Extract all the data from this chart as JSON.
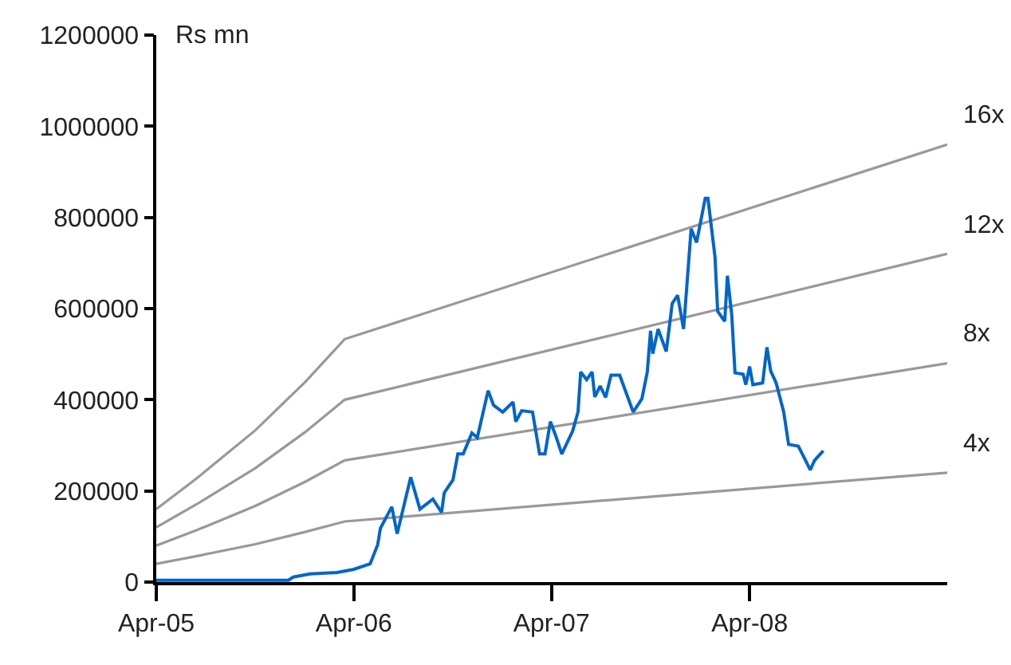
{
  "chart_data": {
    "type": "line",
    "ylabel": "Rs mn",
    "xlim": [
      "2005-04-01",
      "2009-04-01"
    ],
    "xticks": [
      {
        "value": "2005-04-01",
        "label": "Apr-05"
      },
      {
        "value": "2006-04-01",
        "label": "Apr-06"
      },
      {
        "value": "2007-04-01",
        "label": "Apr-07"
      },
      {
        "value": "2008-04-01",
        "label": "Apr-08"
      }
    ],
    "ylim": [
      0,
      1200000
    ],
    "yticks": [
      0,
      200000,
      400000,
      600000,
      800000,
      1000000,
      1200000
    ],
    "legend": false,
    "marker": "none",
    "line_style": "solid",
    "series": [
      {
        "name": "16x",
        "color": "#999999",
        "x": [
          "2005-04-01",
          "2005-06-15",
          "2005-10-01",
          "2006-01-01",
          "2006-03-15",
          "2009-04-01"
        ],
        "values": [
          160000,
          228000,
          333000,
          439000,
          533000,
          960000
        ]
      },
      {
        "name": "12x",
        "color": "#999999",
        "x": [
          "2005-04-01",
          "2005-06-15",
          "2005-10-01",
          "2006-01-01",
          "2006-03-15",
          "2009-04-01"
        ],
        "values": [
          120000,
          171000,
          250000,
          329000,
          400000,
          720000
        ]
      },
      {
        "name": "8x",
        "color": "#999999",
        "x": [
          "2005-04-01",
          "2005-06-15",
          "2005-10-01",
          "2006-01-01",
          "2006-03-15",
          "2009-04-01"
        ],
        "values": [
          80000,
          114000,
          167000,
          220000,
          267000,
          480000
        ]
      },
      {
        "name": "4x",
        "color": "#999999",
        "x": [
          "2005-04-01",
          "2005-06-15",
          "2005-10-01",
          "2006-01-01",
          "2006-03-15",
          "2009-04-01"
        ],
        "values": [
          40000,
          57000,
          83000,
          110000,
          133000,
          240000
        ]
      },
      {
        "color": "#0066cc",
        "x": [
          "2005-04-01",
          "2005-12-01",
          "2005-12-10",
          "2006-01-10",
          "2006-03-01",
          "2006-04-01",
          "2006-05-01",
          "2006-05-15",
          "2006-05-20",
          "2006-06-10",
          "2006-06-20",
          "2006-07-15",
          "2006-08-01",
          "2006-08-25",
          "2006-09-10",
          "2006-09-15",
          "2006-10-01",
          "2006-10-10",
          "2006-10-20",
          "2006-11-05",
          "2006-11-15",
          "2006-12-05",
          "2006-12-15",
          "2007-01-01",
          "2007-01-20",
          "2007-01-25",
          "2007-02-05",
          "2007-02-25",
          "2007-03-10",
          "2007-03-20",
          "2007-03-30",
          "2007-04-10",
          "2007-04-20",
          "2007-05-10",
          "2007-05-20",
          "2007-05-25",
          "2007-06-05",
          "2007-06-15",
          "2007-06-20",
          "2007-06-30",
          "2007-07-10",
          "2007-07-20",
          "2007-08-05",
          "2007-08-30",
          "2007-09-15",
          "2007-09-25",
          "2007-10-01",
          "2007-10-05",
          "2007-10-15",
          "2007-10-30",
          "2007-11-10",
          "2007-11-20",
          "2007-12-01",
          "2007-12-15",
          "2007-12-25",
          "2008-01-10",
          "2008-01-15",
          "2008-01-28",
          "2008-02-02",
          "2008-02-15",
          "2008-02-20",
          "2008-02-28",
          "2008-03-05",
          "2008-03-20",
          "2008-03-25",
          "2008-04-01",
          "2008-04-07",
          "2008-04-25",
          "2008-05-03",
          "2008-05-10",
          "2008-05-20",
          "2008-06-03",
          "2008-06-12",
          "2008-06-30",
          "2008-07-12",
          "2008-07-22",
          "2008-07-30",
          "2008-08-15"
        ],
        "values": [
          4000,
          4000,
          11000,
          18000,
          21000,
          28000,
          40000,
          82000,
          118000,
          165000,
          106000,
          230000,
          160000,
          182000,
          153000,
          196000,
          224000,
          281000,
          281000,
          327000,
          317000,
          420000,
          388000,
          373000,
          395000,
          352000,
          376000,
          373000,
          281000,
          281000,
          352000,
          317000,
          281000,
          331000,
          373000,
          461000,
          444000,
          461000,
          406000,
          430000,
          405000,
          454000,
          454000,
          373000,
          402000,
          461000,
          551000,
          501000,
          555000,
          506000,
          611000,
          629000,
          555000,
          775000,
          745000,
          842000,
          842000,
          714000,
          594000,
          572000,
          672000,
          586000,
          459000,
          456000,
          433000,
          473000,
          433000,
          437000,
          515000,
          463000,
          437000,
          373000,
          302000,
          298000,
          270000,
          246000,
          267000,
          288000
        ]
      }
    ]
  }
}
